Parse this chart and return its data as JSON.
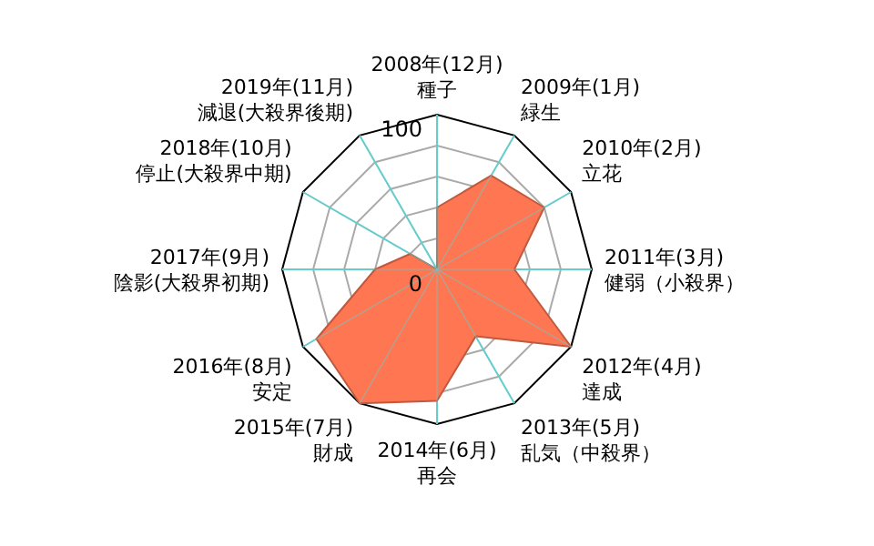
{
  "chart_data": {
    "type": "radar",
    "categories": [
      "2008年(12月)\n種子",
      "2009年(1月)\n緑生",
      "2010年(2月)\n立花",
      "2011年(3月)\n健弱（小殺界）",
      "2012年(4月)\n達成",
      "2013年(5月)\n乱気（中殺界）",
      "2014年(6月)\n再会",
      "2015年(7月)\n財成",
      "2016年(8月)\n安定",
      "2017年(9月)\n陰影(大殺界初期)",
      "2018年(10月)\n停止(大殺界中期)",
      "2019年(11月)\n減退(大殺界後期)"
    ],
    "series": [
      {
        "color": "#ff7752",
        "values": [
          40,
          70,
          80,
          50,
          100,
          50,
          85,
          100,
          90,
          40,
          20,
          0
        ]
      }
    ],
    "ylim": [
      0,
      100
    ],
    "yticks": [
      0,
      100
    ],
    "grid": true
  }
}
